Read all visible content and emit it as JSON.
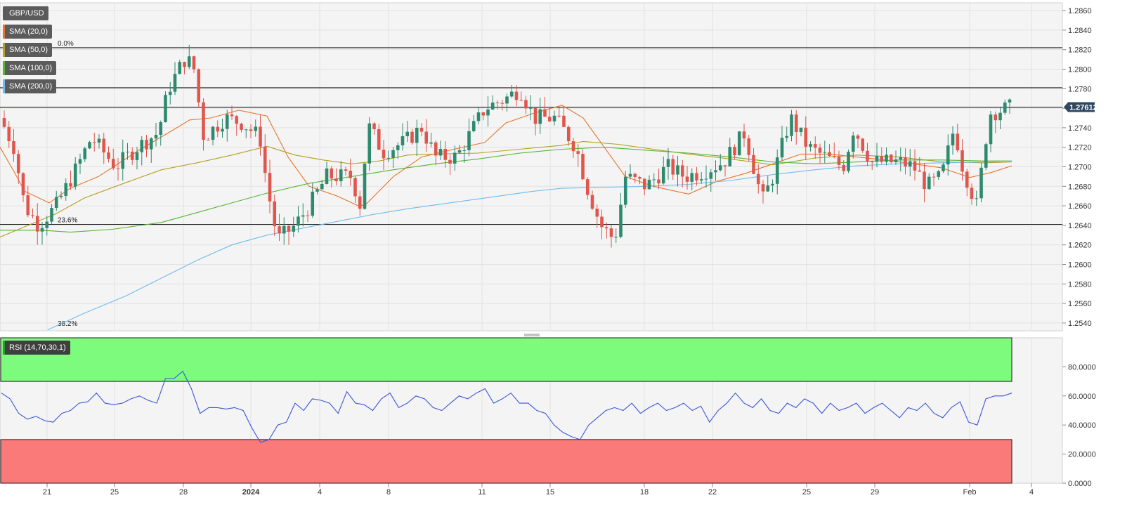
{
  "symbol": "GBP/USD",
  "indicators": [
    {
      "label": "SMA (20,0)",
      "color": "#e8742a"
    },
    {
      "label": "SMA (50,0)",
      "color": "#b5a023"
    },
    {
      "label": "SMA (100,0)",
      "color": "#56b532"
    },
    {
      "label": "SMA (200,0)",
      "color": "#6fbcec"
    }
  ],
  "rsi_label": "RSI (14,70,30,1)",
  "price_badge": "1.27612",
  "colors": {
    "up": "#2e8a6e",
    "down": "#e0564c",
    "rsi_line": "#3b55d9",
    "overbought_zone": "#7cfb7c",
    "oversold_zone": "#fa7a7a",
    "badge": "#2f4761"
  },
  "chart_data": [
    {
      "type": "candlestick",
      "title": "GBP/USD",
      "y_ticks": [
        "1.2860",
        "1.2840",
        "1.2820",
        "1.2800",
        "1.2780",
        "1.2760",
        "1.2740",
        "1.2720",
        "1.2700",
        "1.2680",
        "1.2660",
        "1.2640",
        "1.2620",
        "1.2600",
        "1.2580",
        "1.2560",
        "1.2540"
      ],
      "ylim": [
        1.2532,
        1.2868
      ],
      "x_ticks": [
        "21",
        "25",
        "28",
        "2024",
        "4",
        "8",
        "11",
        "15",
        "18",
        "22",
        "25",
        "29",
        "Feb",
        "4"
      ],
      "horizontal_levels": [
        1.2822,
        1.2781,
        1.2761,
        1.2641
      ],
      "fib_labels": [
        {
          "text": "0.0%",
          "price": 1.2822
        },
        {
          "text": "23.6%",
          "price": 1.2641
        },
        {
          "text": "38.2%",
          "price": 1.2535
        }
      ],
      "last_price": 1.27612,
      "sma_series": [
        {
          "name": "SMA (20,0)",
          "points": [
            [
              0,
              1.272
            ],
            [
              20,
              1.2695
            ],
            [
              35,
              1.2675
            ],
            [
              70,
              1.2663
            ],
            [
              100,
              1.2678
            ],
            [
              140,
              1.269
            ],
            [
              200,
              1.2718
            ],
            [
              240,
              1.2735
            ],
            [
              270,
              1.2748
            ],
            [
              300,
              1.275
            ],
            [
              340,
              1.2758
            ],
            [
              380,
              1.2752
            ],
            [
              410,
              1.271
            ],
            [
              440,
              1.268
            ],
            [
              480,
              1.267
            ],
            [
              510,
              1.266
            ],
            [
              520,
              1.2661
            ],
            [
              560,
              1.269
            ],
            [
              600,
              1.271
            ],
            [
              640,
              1.2717
            ],
            [
              690,
              1.2725
            ],
            [
              720,
              1.2745
            ],
            [
              760,
              1.2755
            ],
            [
              800,
              1.2763
            ],
            [
              830,
              1.275
            ],
            [
              860,
              1.272
            ],
            [
              890,
              1.269
            ],
            [
              930,
              1.268
            ],
            [
              980,
              1.2672
            ],
            [
              1020,
              1.2685
            ],
            [
              1060,
              1.2693
            ],
            [
              1100,
              1.2703
            ],
            [
              1140,
              1.2713
            ],
            [
              1180,
              1.2713
            ],
            [
              1220,
              1.271
            ],
            [
              1260,
              1.2707
            ],
            [
              1300,
              1.2703
            ],
            [
              1340,
              1.2699
            ],
            [
              1380,
              1.2689
            ],
            [
              1410,
              1.2694
            ],
            [
              1440,
              1.2701
            ]
          ]
        },
        {
          "name": "SMA (50,0)",
          "points": [
            [
              0,
              1.2628
            ],
            [
              40,
              1.264
            ],
            [
              80,
              1.2652
            ],
            [
              120,
              1.2668
            ],
            [
              180,
              1.2684
            ],
            [
              230,
              1.2697
            ],
            [
              280,
              1.2704
            ],
            [
              330,
              1.2712
            ],
            [
              380,
              1.2721
            ],
            [
              420,
              1.2712
            ],
            [
              460,
              1.2707
            ],
            [
              500,
              1.2703
            ],
            [
              540,
              1.2706
            ],
            [
              580,
              1.2712
            ],
            [
              620,
              1.2713
            ],
            [
              680,
              1.2714
            ],
            [
              740,
              1.2718
            ],
            [
              800,
              1.2722
            ],
            [
              830,
              1.2726
            ],
            [
              880,
              1.2723
            ],
            [
              930,
              1.2718
            ],
            [
              980,
              1.2713
            ],
            [
              1040,
              1.2708
            ],
            [
              1100,
              1.2702
            ],
            [
              1160,
              1.2709
            ],
            [
              1220,
              1.2712
            ],
            [
              1280,
              1.271
            ],
            [
              1340,
              1.2705
            ],
            [
              1400,
              1.2704
            ],
            [
              1440,
              1.2705
            ]
          ]
        },
        {
          "name": "SMA (100,0)",
          "points": [
            [
              0,
              1.2635
            ],
            [
              60,
              1.2635
            ],
            [
              100,
              1.2633
            ],
            [
              160,
              1.2636
            ],
            [
              230,
              1.2643
            ],
            [
              280,
              1.2653
            ],
            [
              330,
              1.2663
            ],
            [
              380,
              1.2673
            ],
            [
              440,
              1.2683
            ],
            [
              500,
              1.269
            ],
            [
              560,
              1.2697
            ],
            [
              620,
              1.2703
            ],
            [
              680,
              1.2708
            ],
            [
              740,
              1.2714
            ],
            [
              800,
              1.2718
            ],
            [
              860,
              1.272
            ],
            [
              920,
              1.2717
            ],
            [
              980,
              1.2714
            ],
            [
              1040,
              1.271
            ],
            [
              1100,
              1.2705
            ],
            [
              1160,
              1.2703
            ],
            [
              1220,
              1.2705
            ],
            [
              1280,
              1.2707
            ],
            [
              1340,
              1.2707
            ],
            [
              1400,
              1.2706
            ],
            [
              1440,
              1.2706
            ]
          ]
        },
        {
          "name": "SMA (200,0)",
          "points": [
            [
              68,
              1.2533
            ],
            [
              120,
              1.255
            ],
            [
              180,
              1.2568
            ],
            [
              230,
              1.2586
            ],
            [
              280,
              1.2604
            ],
            [
              330,
              1.262
            ],
            [
              380,
              1.263
            ],
            [
              430,
              1.2637
            ],
            [
              480,
              1.2644
            ],
            [
              530,
              1.2651
            ],
            [
              580,
              1.2657
            ],
            [
              640,
              1.2663
            ],
            [
              700,
              1.2669
            ],
            [
              760,
              1.2675
            ],
            [
              800,
              1.2678
            ],
            [
              860,
              1.2679
            ],
            [
              920,
              1.268
            ],
            [
              980,
              1.2682
            ],
            [
              1040,
              1.2686
            ],
            [
              1100,
              1.2692
            ],
            [
              1160,
              1.2697
            ],
            [
              1220,
              1.2701
            ],
            [
              1280,
              1.2703
            ],
            [
              1340,
              1.2704
            ],
            [
              1400,
              1.2705
            ],
            [
              1440,
              1.2706
            ]
          ]
        }
      ]
    },
    {
      "type": "line",
      "title": "RSI (14,70,30,1)",
      "y_ticks": [
        "80.0000",
        "60.0000",
        "40.0000",
        "20.0000",
        "0.0000"
      ],
      "ylim": [
        0,
        100
      ],
      "overbought": 70,
      "oversold": 30,
      "rsi_values": [
        62,
        58,
        48,
        44,
        46,
        43,
        42,
        48,
        50,
        55,
        56,
        62,
        55,
        54,
        55,
        58,
        60,
        57,
        55,
        72,
        72,
        77,
        65,
        48,
        52,
        52,
        51,
        52,
        50,
        38,
        28,
        30,
        40,
        42,
        55,
        50,
        58,
        57,
        55,
        48,
        63,
        55,
        54,
        50,
        58,
        62,
        52,
        55,
        60,
        58,
        52,
        50,
        55,
        60,
        58,
        62,
        65,
        55,
        58,
        62,
        55,
        55,
        50,
        48,
        40,
        35,
        32,
        30,
        40,
        45,
        50,
        52,
        50,
        55,
        48,
        52,
        55,
        50,
        52,
        55,
        50,
        53,
        42,
        50,
        55,
        62,
        55,
        52,
        58,
        50,
        48,
        55,
        52,
        58,
        55,
        48,
        55,
        50,
        52,
        55,
        48,
        52,
        55,
        50,
        45,
        52,
        50,
        55,
        48,
        45,
        52,
        56,
        42,
        40,
        58,
        60,
        60,
        62
      ]
    }
  ]
}
